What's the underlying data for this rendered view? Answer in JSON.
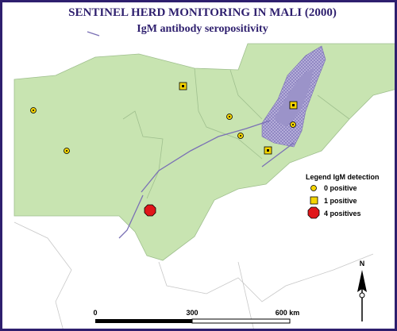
{
  "header": {
    "title": "SENTINEL HERD MONITORING IN MALI (2000)",
    "subtitle": "IgM  antibody seropositivity"
  },
  "legend": {
    "title": "Legend IgM detection",
    "items": [
      "0 positive",
      "1 positive",
      "4 positives"
    ]
  },
  "scale": {
    "labels": [
      "0",
      "300",
      "600 km"
    ]
  },
  "north": "N"
}
